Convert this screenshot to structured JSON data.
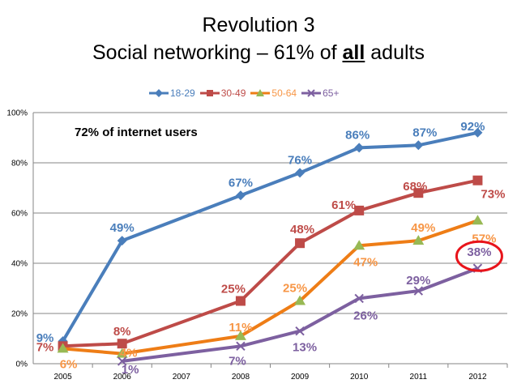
{
  "title": {
    "line1": "Revolution 3",
    "line2_prefix": "Social networking – 61% of ",
    "line2_bold": "all",
    "line2_suffix": " adults"
  },
  "annotation": "72% of internet users",
  "chart_data": {
    "type": "line",
    "categories": [
      "2005",
      "2006",
      "2007",
      "2008",
      "2009",
      "2010",
      "2011",
      "2012"
    ],
    "ylim": [
      0,
      100
    ],
    "yticks": [
      "0%",
      "20%",
      "40%",
      "60%",
      "80%",
      "100%"
    ],
    "grid": true,
    "legend": "top",
    "series": [
      {
        "name": "18-29",
        "color": "#4a7ebb",
        "marker": "diamond",
        "values": [
          9,
          49,
          null,
          67,
          76,
          86,
          87,
          92
        ],
        "labels": [
          "9%",
          "49%",
          null,
          "67%",
          "76%",
          "86%",
          "87%",
          "92%"
        ]
      },
      {
        "name": "30-49",
        "color": "#be4b48",
        "marker": "square",
        "values": [
          7,
          8,
          null,
          25,
          48,
          61,
          68,
          73
        ],
        "labels": [
          "7%",
          "8%",
          null,
          "25%",
          "48%",
          "61%",
          "68%",
          "73%"
        ]
      },
      {
        "name": "50-64",
        "color": "#f0841a",
        "line_color": "#ee7d16",
        "marker_color": "#98b954",
        "label_color": "#f79646",
        "marker": "triangle",
        "values": [
          6,
          4,
          null,
          11,
          25,
          47,
          49,
          57
        ],
        "labels": [
          "6%",
          "4%",
          null,
          "11%",
          "25%",
          "47%",
          "49%",
          "57%"
        ]
      },
      {
        "name": "65+",
        "color": "#7d60a0",
        "marker": "x",
        "values": [
          null,
          1,
          null,
          7,
          13,
          26,
          29,
          38
        ],
        "labels": [
          null,
          "1%",
          null,
          "7%",
          "13%",
          "26%",
          "29%",
          "38%"
        ]
      }
    ],
    "highlight": {
      "series": "65+",
      "category": "2012",
      "color": "#e8141b"
    }
  }
}
